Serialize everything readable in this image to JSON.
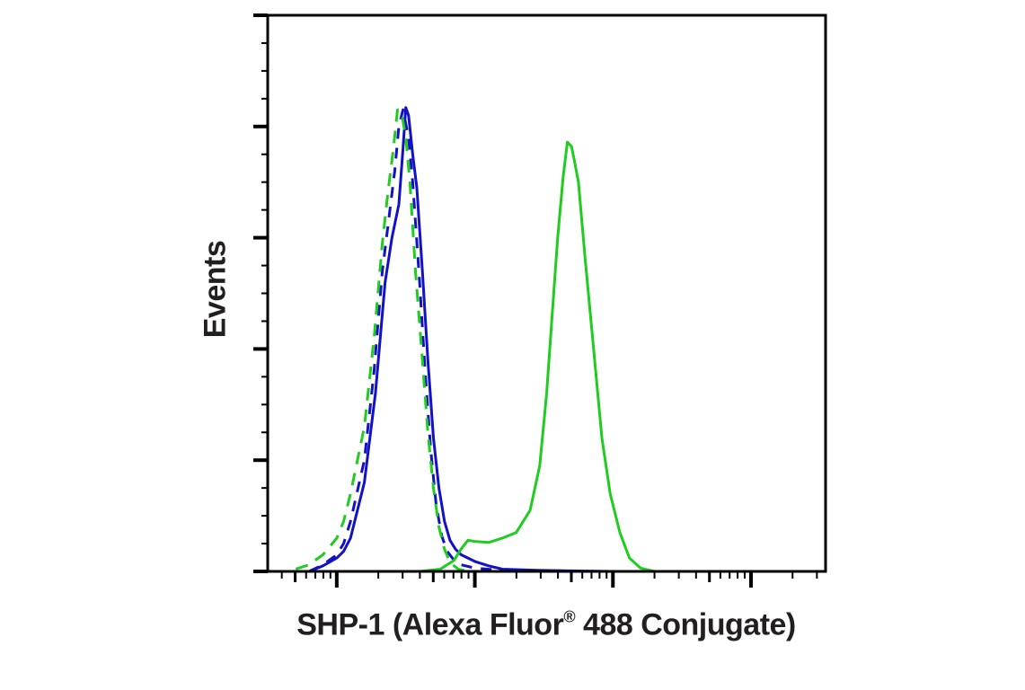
{
  "chart_data": {
    "type": "line",
    "title": "",
    "xlabel": "SHP-1 (Alexa Fluor® 488 Conjugate)",
    "xlabel_main": "SHP-1 (Alexa Fluor",
    "xlabel_reg": "®",
    "xlabel_tail": " 488 Conjugate)",
    "ylabel": "Events",
    "x_scale": "log",
    "x_units": "log10 decades relative to first major tick (tick labels not shown)",
    "xlim": [
      -0.5,
      3.54
    ],
    "ylim": [
      0,
      5
    ],
    "x_major_ticks": [
      0,
      1,
      2,
      3
    ],
    "y_major_ticks": [
      0,
      1,
      2,
      3,
      4,
      5
    ],
    "grid": false,
    "legend": null,
    "colors": {
      "blue": "#1212c4",
      "green": "#1fcc1f",
      "axis": "#000000",
      "text": "#231f20"
    },
    "series": [
      {
        "name": "blue-solid",
        "color": "#1212c4",
        "dash": "none",
        "x": [
          -0.2,
          -0.1,
          0.0,
          0.05,
          0.1,
          0.2,
          0.28,
          0.35,
          0.4,
          0.45,
          0.48,
          0.5,
          0.52,
          0.55,
          0.58,
          0.62,
          0.66,
          0.7,
          0.74,
          0.78,
          0.82,
          0.86,
          0.9,
          0.95,
          1.0,
          1.1,
          1.2,
          1.45,
          1.7,
          2.0,
          3.54
        ],
        "y": [
          0.0,
          0.05,
          0.12,
          0.18,
          0.3,
          0.8,
          1.6,
          2.6,
          3.0,
          3.3,
          3.8,
          4.17,
          4.1,
          3.75,
          3.45,
          2.7,
          1.9,
          1.2,
          0.75,
          0.45,
          0.28,
          0.2,
          0.15,
          0.12,
          0.09,
          0.05,
          0.02,
          0.01,
          0.005,
          0.0,
          0.0
        ]
      },
      {
        "name": "blue-dashed",
        "color": "#1212c4",
        "dash": "12 10",
        "x": [
          -0.2,
          -0.1,
          0.0,
          0.05,
          0.1,
          0.2,
          0.27,
          0.33,
          0.38,
          0.42,
          0.45,
          0.48,
          0.52,
          0.55,
          0.6,
          0.64,
          0.68,
          0.72,
          0.76,
          0.8,
          0.85,
          0.9,
          1.0,
          1.2,
          1.5,
          3.54
        ],
        "y": [
          0.0,
          0.06,
          0.15,
          0.25,
          0.45,
          1.0,
          1.8,
          2.7,
          3.2,
          3.6,
          4.0,
          4.15,
          3.9,
          3.5,
          2.6,
          1.8,
          1.1,
          0.6,
          0.32,
          0.18,
          0.1,
          0.06,
          0.03,
          0.01,
          0.0,
          0.0
        ]
      },
      {
        "name": "green-dashed",
        "color": "#1fcc1f",
        "dash": "14 10",
        "x": [
          -0.45,
          -0.35,
          -0.2,
          -0.1,
          0.0,
          0.05,
          0.1,
          0.2,
          0.27,
          0.33,
          0.37,
          0.41,
          0.44,
          0.47,
          0.5,
          0.53,
          0.57,
          0.62,
          0.66,
          0.7,
          0.74,
          0.78,
          0.82,
          0.88,
          0.95,
          1.05,
          1.2,
          3.54
        ],
        "y": [
          0.0,
          0.0,
          0.06,
          0.15,
          0.3,
          0.45,
          0.7,
          1.3,
          2.1,
          2.95,
          3.4,
          3.8,
          4.15,
          4.12,
          3.9,
          3.5,
          2.7,
          1.9,
          1.25,
          0.75,
          0.4,
          0.2,
          0.08,
          0.02,
          0.0,
          0.0,
          0.0,
          0.0
        ]
      },
      {
        "name": "green-solid",
        "color": "#1fcc1f",
        "dash": "none",
        "x": [
          -0.5,
          0.6,
          0.75,
          0.85,
          0.9,
          0.95,
          1.0,
          1.1,
          1.2,
          1.3,
          1.4,
          1.47,
          1.52,
          1.56,
          1.6,
          1.64,
          1.67,
          1.7,
          1.72,
          1.75,
          1.8,
          1.86,
          1.92,
          1.98,
          2.05,
          2.12,
          2.2,
          2.3,
          3.54
        ],
        "y": [
          0.0,
          0.0,
          0.02,
          0.1,
          0.2,
          0.28,
          0.27,
          0.26,
          0.3,
          0.35,
          0.55,
          0.95,
          1.6,
          2.3,
          3.0,
          3.55,
          3.86,
          3.82,
          3.7,
          3.5,
          2.8,
          2.0,
          1.2,
          0.7,
          0.35,
          0.12,
          0.03,
          0.0,
          0.0
        ]
      }
    ]
  },
  "labels": {
    "ylabel": "Events",
    "xlabel_main": "SHP-1 (Alexa Fluor",
    "xlabel_reg": "®",
    "xlabel_tail": " 488 Conjugate)"
  }
}
